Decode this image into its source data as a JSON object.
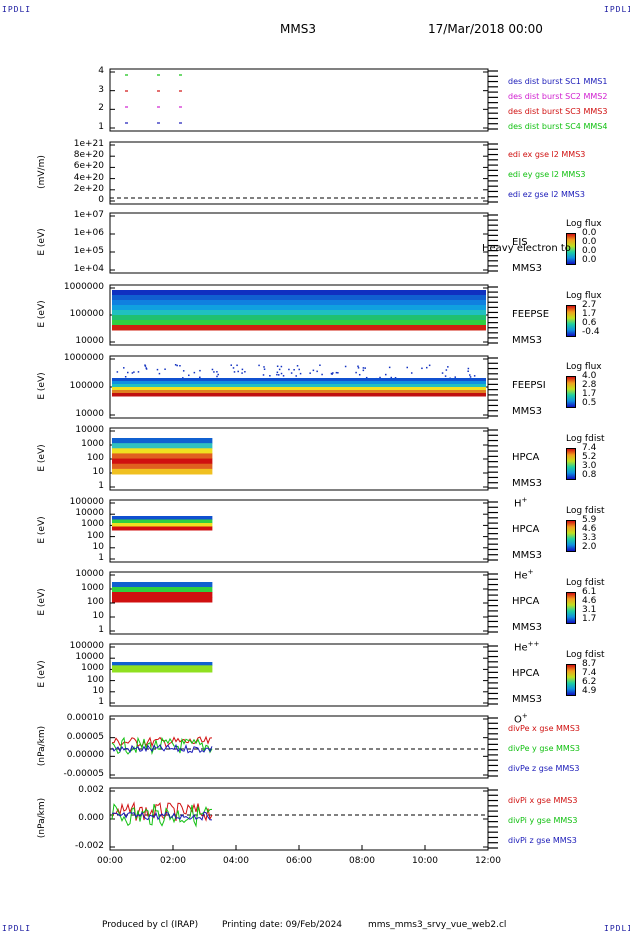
{
  "corners": {
    "tl": "IPDLI",
    "tr": "IPDLI",
    "bl": "IPDLI",
    "br": "IPDLI"
  },
  "header": {
    "spacecraft": "MMS3",
    "date": "17/Mar/2018 00:00"
  },
  "footer": {
    "produced": "Produced by cl (IRAP)",
    "printing": "Printing date: 09/Feb/2024",
    "file": "mms_mms3_srvy_vue_web2.cl"
  },
  "colors": {
    "c1": "#1a1ab8",
    "c2": "#d020d0",
    "c3": "#d01010",
    "c4": "#10c010"
  },
  "chart_data": [
    {
      "type": "scatter",
      "name": "burst",
      "ylabel": "",
      "yticks": [
        "4",
        "3",
        "2",
        "1"
      ],
      "legend": [
        {
          "text": "des dist burst SC1 MMS1",
          "color": "#1a1ab8"
        },
        {
          "text": "des dist burst SC2 MMS2",
          "color": "#d020d0"
        },
        {
          "text": "des dist burst SC3 MMS3",
          "color": "#d01010"
        },
        {
          "text": "des dist burst SC4 MMS4",
          "color": "#10c010"
        }
      ]
    },
    {
      "type": "line",
      "name": "edi",
      "ylabel": "(mV/m)",
      "yticks": [
        "1e+21",
        "8e+20",
        "6e+20",
        "4e+20",
        "2e+20",
        "0"
      ],
      "legend": [
        {
          "text": "edi ex gse l2 MMS3",
          "color": "#d01010"
        },
        {
          "text": "edi ey gse l2 MMS3",
          "color": "#10c010"
        },
        {
          "text": "edi ez gse l2 MMS3",
          "color": "#1a1ab8"
        }
      ]
    },
    {
      "type": "heatmap",
      "name": "eis",
      "ylabel": "E (eV)",
      "yticks": [
        "1e+07",
        "1e+06",
        "1e+05",
        "1e+04"
      ],
      "inst": [
        "EIS",
        "MMS3"
      ],
      "overlay": "Heavy electron to",
      "cbtitle": "Log flux",
      "cbvals": [
        "0.0",
        "0.0",
        "0.0",
        "0.0"
      ]
    },
    {
      "type": "heatmap",
      "name": "feepse",
      "ylabel": "E (eV)",
      "yticks": [
        "1000000",
        "100000",
        "10000"
      ],
      "inst": [
        "FEEPSE",
        "MMS3"
      ],
      "cbtitle": "Log flux",
      "cbvals": [
        "2.7",
        "1.7",
        "0.6",
        "-0.4"
      ]
    },
    {
      "type": "heatmap",
      "name": "feepsi",
      "ylabel": "E (eV)",
      "yticks": [
        "1000000",
        "100000",
        "10000"
      ],
      "inst": [
        "FEEPSI",
        "MMS3"
      ],
      "cbtitle": "Log flux",
      "cbvals": [
        "4.0",
        "2.8",
        "1.7",
        "0.5"
      ]
    },
    {
      "type": "heatmap",
      "name": "hpca-h",
      "ylabel": "E (eV)",
      "yticks": [
        "10000",
        "1000",
        "100",
        "10",
        "1"
      ],
      "inst": [
        "HPCA",
        "MMS3"
      ],
      "species": "H",
      "sup": "+",
      "cbtitle": "Log fdist",
      "cbvals": [
        "7.4",
        "5.2",
        "3.0",
        "0.8"
      ]
    },
    {
      "type": "heatmap",
      "name": "hpca-he",
      "ylabel": "E (eV)",
      "yticks": [
        "100000",
        "10000",
        "1000",
        "100",
        "10",
        "1"
      ],
      "inst": [
        "HPCA",
        "MMS3"
      ],
      "species": "He",
      "sup": "+",
      "cbtitle": "Log fdist",
      "cbvals": [
        "5.9",
        "4.6",
        "3.3",
        "2.0"
      ]
    },
    {
      "type": "heatmap",
      "name": "hpca-hepp",
      "ylabel": "E (eV)",
      "yticks": [
        "10000",
        "1000",
        "100",
        "10",
        "1"
      ],
      "inst": [
        "HPCA",
        "MMS3"
      ],
      "species": "He",
      "sup": "++",
      "cbtitle": "Log fdist",
      "cbvals": [
        "6.1",
        "4.6",
        "3.1",
        "1.7"
      ]
    },
    {
      "type": "heatmap",
      "name": "hpca-o",
      "ylabel": "E (eV)",
      "yticks": [
        "100000",
        "10000",
        "1000",
        "100",
        "10",
        "1"
      ],
      "inst": [
        "HPCA",
        "MMS3"
      ],
      "species": "O",
      "sup": "+",
      "cbtitle": "Log fdist",
      "cbvals": [
        "8.7",
        "7.4",
        "6.2",
        "4.9"
      ]
    },
    {
      "type": "line",
      "name": "divpe",
      "ylabel": "(nPa/km)",
      "yticks": [
        "0.00010",
        "0.00005",
        "0.00000",
        "-0.00005"
      ],
      "legend": [
        {
          "text": "divPe x gse MMS3",
          "color": "#d01010"
        },
        {
          "text": "divPe y gse MMS3",
          "color": "#10c010"
        },
        {
          "text": "divPe z gse MMS3",
          "color": "#1a1ab8"
        }
      ]
    },
    {
      "type": "line",
      "name": "divpi",
      "ylabel": "(nPa/km)",
      "yticks": [
        "0.002",
        "0.000",
        "-0.002"
      ],
      "legend": [
        {
          "text": "divPi x gse MMS3",
          "color": "#d01010"
        },
        {
          "text": "divPi y gse MMS3",
          "color": "#10c010"
        },
        {
          "text": "divPi z gse MMS3",
          "color": "#1a1ab8"
        }
      ]
    }
  ],
  "xaxis": {
    "ticks": [
      "00:00",
      "02:00",
      "04:00",
      "06:00",
      "08:00",
      "10:00",
      "12:00"
    ]
  }
}
